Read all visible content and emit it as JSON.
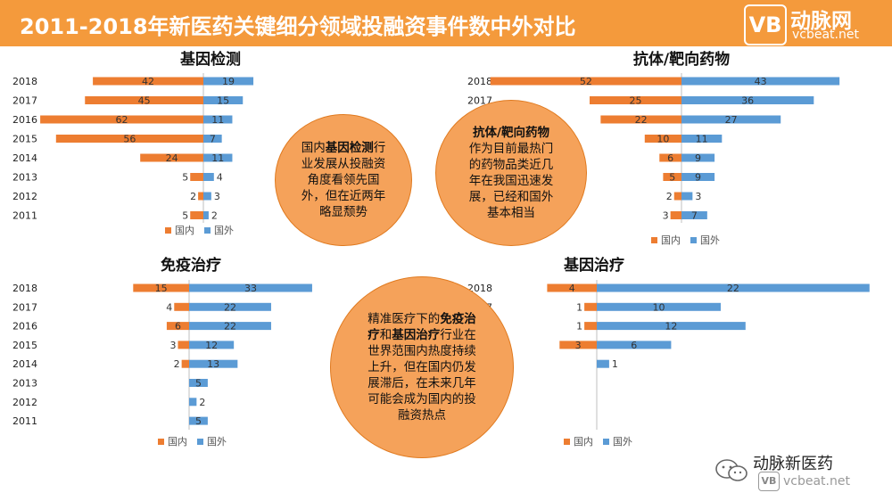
{
  "header": {
    "title": "2011-2018年新医药关键细分领域投融资事件数中外对比"
  },
  "logo": {
    "mark": "VB",
    "name": "动脉网",
    "url": "vcbeat.net"
  },
  "colors": {
    "domestic": "#ed7d31",
    "foreign": "#5b9bd5",
    "header": "#f49a3c",
    "bubble": "#f5a25a"
  },
  "chart_data": [
    {
      "type": "bar",
      "title": "基因检测",
      "categories": [
        "2018",
        "2017",
        "2016",
        "2015",
        "2014",
        "2013",
        "2012",
        "2011"
      ],
      "series": [
        {
          "name": "国内",
          "values": [
            42,
            45,
            62,
            56,
            24,
            5,
            2,
            5
          ]
        },
        {
          "name": "国外",
          "values": [
            19,
            15,
            11,
            7,
            11,
            4,
            3,
            2
          ]
        }
      ],
      "legend": "bottom"
    },
    {
      "type": "bar",
      "title": "抗体/靶向药物",
      "categories": [
        "2018",
        "2017",
        "2016",
        "2015",
        "2014",
        "2013",
        "2012",
        "2011"
      ],
      "series": [
        {
          "name": "国内",
          "values": [
            52,
            25,
            22,
            10,
            6,
            5,
            2,
            3
          ]
        },
        {
          "name": "国外",
          "values": [
            43,
            36,
            27,
            11,
            9,
            9,
            3,
            7
          ]
        }
      ],
      "legend": "bottom"
    },
    {
      "type": "bar",
      "title": "免疫治疗",
      "categories": [
        "2018",
        "2017",
        "2016",
        "2015",
        "2014",
        "2013",
        "2012",
        "2011"
      ],
      "series": [
        {
          "name": "国内",
          "values": [
            15,
            4,
            6,
            3,
            2,
            null,
            null,
            null
          ]
        },
        {
          "name": "国外",
          "values": [
            33,
            22,
            22,
            12,
            13,
            5,
            2,
            5
          ]
        }
      ],
      "legend": "bottom"
    },
    {
      "type": "bar",
      "title": "基因治疗",
      "categories": [
        "2018",
        "2017",
        "2016",
        "2015",
        "2014",
        "2013",
        "2012",
        "2011"
      ],
      "series": [
        {
          "name": "国内",
          "values": [
            4,
            1,
            1,
            3,
            null,
            null,
            null,
            null
          ]
        },
        {
          "name": "国外",
          "values": [
            22,
            10,
            12,
            6,
            1,
            null,
            null,
            null
          ]
        }
      ],
      "legend": "bottom"
    }
  ],
  "bubbles": {
    "genetic_testing": "国内<b>基因检测</b>行业发展从投融资角度看领先国外，但在近两年略显颓势",
    "antibody": "<b>抗体/靶向药物</b><br>作为目前最热门的药物品类近几年在我国迅速发展，已经和国外基本相当",
    "immuno_gene": "精准医疗下的<b>免疫治疗</b>和<b>基因治疗</b>行业在世界范围内热度持续上升，但在国内仍发展滞后，在未来几年可能会成为国内的投融资热点"
  },
  "footer": {
    "name": "动脉新医药",
    "logo": "VB",
    "url": "vcbeat.net"
  }
}
